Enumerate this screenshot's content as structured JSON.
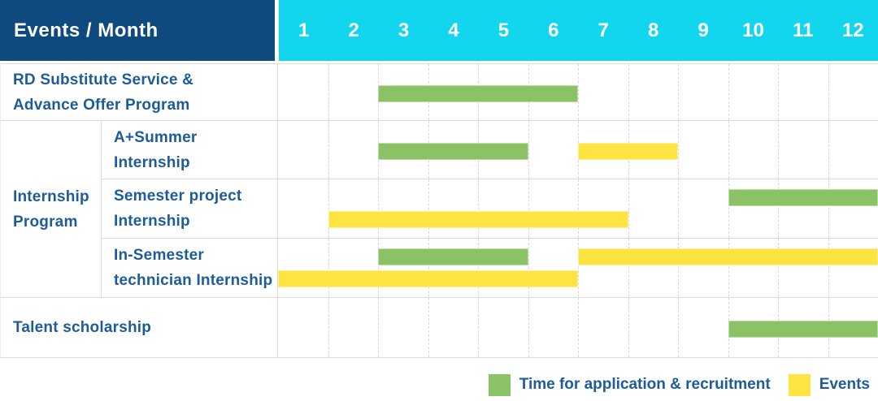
{
  "header": {
    "corner_label": "Events / Month",
    "months": [
      "1",
      "2",
      "3",
      "4",
      "5",
      "6",
      "7",
      "8",
      "9",
      "10",
      "11",
      "12"
    ]
  },
  "table": {
    "rows": [
      {
        "span": "full",
        "label_lines": [
          "RD Substitute Service &",
          "Advance Offer Program"
        ],
        "bars": [
          {
            "series": "application",
            "start": 3,
            "end": 6,
            "line": "single"
          }
        ]
      },
      {
        "span": "sub",
        "group": {
          "label_lines": [
            "Internship",
            "Program"
          ],
          "row_span": 3
        },
        "label_lines": [
          "A+Summer",
          "Internship"
        ],
        "bars": [
          {
            "series": "application",
            "start": 3,
            "end": 5,
            "line": "single"
          },
          {
            "series": "events",
            "start": 7,
            "end": 8,
            "line": "single"
          }
        ]
      },
      {
        "span": "sub",
        "label_lines": [
          "Semester project",
          "Internship"
        ],
        "bars": [
          {
            "series": "application",
            "start": 10,
            "end": 12,
            "line": "top"
          },
          {
            "series": "events",
            "start": 2,
            "end": 7,
            "line": "bottom"
          }
        ]
      },
      {
        "span": "sub",
        "label_lines": [
          "In-Semester",
          "technician Internship"
        ],
        "bars": [
          {
            "series": "application",
            "start": 3,
            "end": 5,
            "line": "top"
          },
          {
            "series": "events",
            "start": 7,
            "end": 12,
            "line": "top"
          },
          {
            "series": "events",
            "start": 1,
            "end": 6,
            "line": "bottom"
          }
        ]
      },
      {
        "span": "full",
        "label_lines": [
          "Talent scholarship"
        ],
        "bars": [
          {
            "series": "application",
            "start": 10,
            "end": 12,
            "line": "single"
          }
        ]
      }
    ]
  },
  "legend": {
    "items": [
      {
        "key": "application",
        "label": "Time for application & recruitment",
        "color": "#8CC266"
      },
      {
        "key": "events",
        "label": "Events",
        "color": "#FDE443"
      }
    ]
  },
  "colors": {
    "navy": "#0E4A7D",
    "cyan": "#12D6EE",
    "label_blue": "#1E5C99",
    "green": "#8CC266",
    "yellow": "#FDE443",
    "grid_line": "#DCDCDC",
    "grid_dashed": "#D9D9D9"
  },
  "chart_data": {
    "type": "table",
    "subtype": "gantt-timeline",
    "title": "Events / Month",
    "x_label": "Month",
    "x_ticks": [
      1,
      2,
      3,
      4,
      5,
      6,
      7,
      8,
      9,
      10,
      11,
      12
    ],
    "legend": [
      "Time for application & recruitment",
      "Events"
    ],
    "legend_position": "bottom-right",
    "grid": "dashed-vertical-month-lines",
    "rows": [
      {
        "event": "RD Substitute Service & Advance Offer Program",
        "group": "",
        "application_recruitment_months": [
          [
            3,
            6
          ]
        ],
        "events_months": []
      },
      {
        "event": "A+Summer Internship",
        "group": "Internship Program",
        "application_recruitment_months": [
          [
            3,
            5
          ]
        ],
        "events_months": [
          [
            7,
            8
          ]
        ]
      },
      {
        "event": "Semester project Internship",
        "group": "Internship Program",
        "application_recruitment_months": [
          [
            10,
            12
          ]
        ],
        "events_months": [
          [
            2,
            7
          ]
        ]
      },
      {
        "event": "In-Semester technician Internship",
        "group": "Internship Program",
        "application_recruitment_months": [
          [
            3,
            5
          ]
        ],
        "events_months": [
          [
            7,
            12
          ],
          [
            1,
            6
          ]
        ]
      },
      {
        "event": "Talent scholarship",
        "group": "",
        "application_recruitment_months": [
          [
            10,
            12
          ]
        ],
        "events_months": []
      }
    ]
  }
}
